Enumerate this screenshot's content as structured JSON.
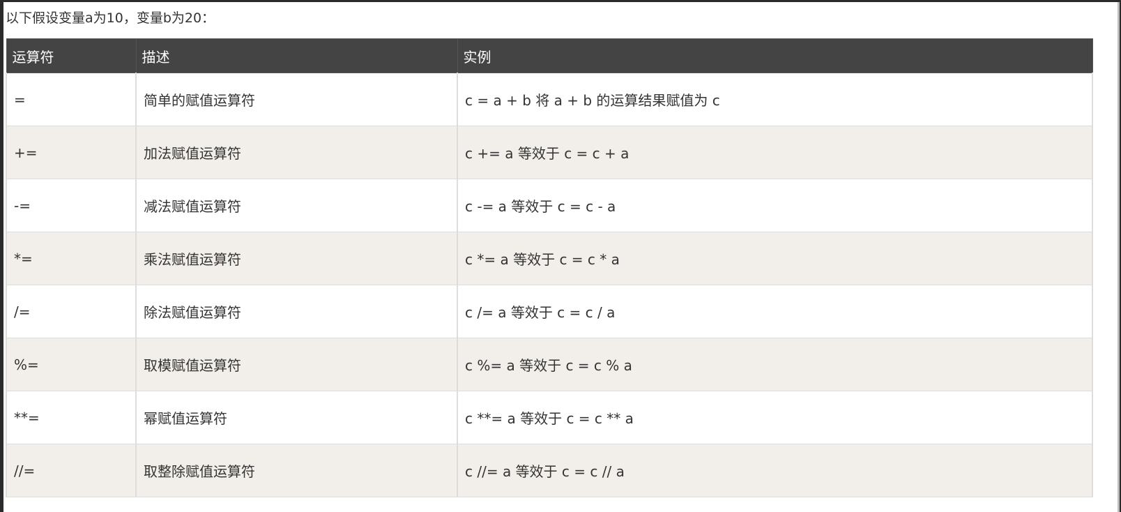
{
  "intro": "以下假设变量a为10，变量b为20：",
  "headers": [
    "运算符",
    "描述",
    "实例"
  ],
  "rows": [
    {
      "op": "=",
      "desc": "简单的赋值运算符",
      "example": "c = a + b 将 a + b 的运算结果赋值为 c"
    },
    {
      "op": "+=",
      "desc": "加法赋值运算符",
      "example": "c += a 等效于 c = c + a"
    },
    {
      "op": "-=",
      "desc": "减法赋值运算符",
      "example": "c -= a 等效于 c = c - a"
    },
    {
      "op": "*=",
      "desc": "乘法赋值运算符",
      "example": "c *= a 等效于 c = c * a"
    },
    {
      "op": "/=",
      "desc": "除法赋值运算符",
      "example": "c /= a 等效于 c = c / a"
    },
    {
      "op": "%=",
      "desc": "取模赋值运算符",
      "example": "c %= a 等效于 c = c % a"
    },
    {
      "op": "**=",
      "desc": "幂赋值运算符",
      "example": "c **= a 等效于 c = c ** a"
    },
    {
      "op": "//=",
      "desc": "取整除赋值运算符",
      "example": "c //= a 等效于 c = c // a"
    }
  ],
  "colors": {
    "header_bg": "#444444",
    "alt_row_bg": "#f2efea"
  }
}
